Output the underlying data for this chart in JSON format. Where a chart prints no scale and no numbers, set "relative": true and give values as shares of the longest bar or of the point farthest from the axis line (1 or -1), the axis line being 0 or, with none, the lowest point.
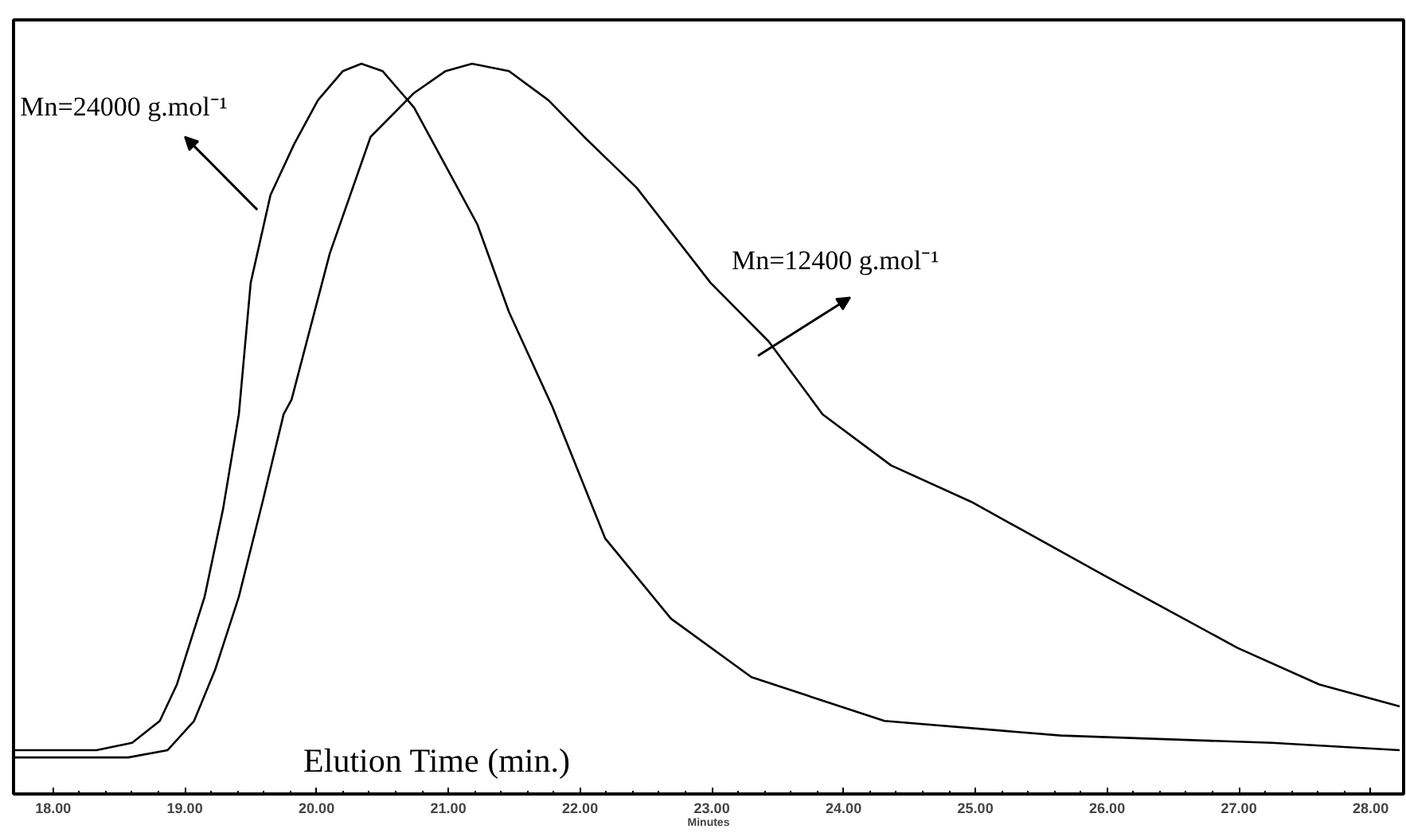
{
  "chart_data": {
    "type": "line",
    "relative": true,
    "xlabel": "Minutes",
    "annotations": [
      "Elution Time (min.)"
    ],
    "xlim": [
      17.7,
      28.25
    ],
    "xticks": [
      {
        "value": 18,
        "label": "18.00"
      },
      {
        "value": 19,
        "label": "19.00"
      },
      {
        "value": 20,
        "label": "20.00"
      },
      {
        "value": 21,
        "label": "21.00"
      },
      {
        "value": 22,
        "label": "22.00"
      },
      {
        "value": 23,
        "label": "23.00"
      },
      {
        "value": 24,
        "label": "24.00"
      },
      {
        "value": 25,
        "label": "25.00"
      },
      {
        "value": 26,
        "label": "26.00"
      },
      {
        "value": 27,
        "label": "27.00"
      },
      {
        "value": 28,
        "label": "28.00"
      }
    ],
    "tick_labels": "x",
    "grid": false,
    "marker": "none",
    "line_style": "solid",
    "series": [
      {
        "name": "Mn=24000 g.mol⁻¹",
        "color": "#000000",
        "x": [
          17.7,
          18.33,
          18.6,
          18.81,
          18.94,
          19.15,
          19.29,
          19.41,
          19.5,
          19.65,
          19.83,
          20.01,
          20.2,
          20.34,
          20.5,
          20.74,
          20.98,
          21.22,
          21.46,
          21.79,
          22.19,
          22.69,
          23.3,
          24.31,
          25.65,
          27.25,
          28.22
        ],
        "values": [
          0.06,
          0.06,
          0.07,
          0.1,
          0.15,
          0.27,
          0.39,
          0.52,
          0.7,
          0.82,
          0.89,
          0.95,
          0.99,
          1.0,
          0.99,
          0.94,
          0.86,
          0.78,
          0.66,
          0.53,
          0.35,
          0.24,
          0.16,
          0.1,
          0.08,
          0.07,
          0.06
        ]
      },
      {
        "name": "Mn=12400 g.mol⁻¹",
        "color": "#000000",
        "x": [
          17.7,
          18.57,
          18.87,
          19.07,
          19.23,
          19.41,
          19.59,
          19.75,
          19.81,
          20.1,
          20.41,
          20.74,
          20.98,
          21.18,
          21.46,
          21.76,
          22.03,
          22.43,
          22.99,
          23.43,
          23.84,
          24.36,
          24.97,
          25.97,
          26.99,
          27.61,
          28.22
        ],
        "values": [
          0.05,
          0.05,
          0.06,
          0.1,
          0.17,
          0.27,
          0.4,
          0.52,
          0.54,
          0.74,
          0.9,
          0.96,
          0.99,
          1.0,
          0.99,
          0.95,
          0.9,
          0.83,
          0.7,
          0.62,
          0.52,
          0.45,
          0.4,
          0.3,
          0.2,
          0.15,
          0.12
        ]
      }
    ]
  }
}
